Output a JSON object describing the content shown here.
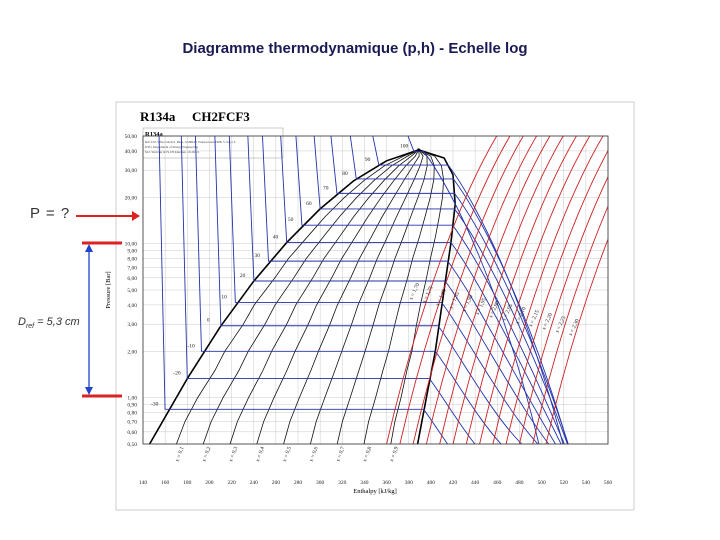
{
  "slide_title": "Diagramme thermodynamique (p,h) - Echelle log",
  "annotation_p": "P = ?",
  "annotation_d_prefix": "D",
  "annotation_d_sub": "ref",
  "annotation_d_value": " = 5,3 cm",
  "chart_data": {
    "type": "line",
    "title": "R134a",
    "subtitle": "CH2FCF3",
    "xlabel": "Enthalpy [kJ/kg]",
    "ylabel": "Pressure [Bar]",
    "xlim": [
      140,
      560
    ],
    "ylim": [
      0.5,
      50
    ],
    "yscale": "log",
    "grid": true,
    "x_ticks": [
      140,
      160,
      180,
      200,
      220,
      240,
      260,
      280,
      300,
      320,
      340,
      360,
      380,
      400,
      420,
      440,
      460,
      480,
      500,
      520,
      540,
      560
    ],
    "y_ticks": [
      50,
      40,
      30,
      20,
      10,
      9,
      8,
      7,
      6,
      5,
      4,
      3,
      2,
      1,
      0.9,
      0.8,
      0.7,
      0.6,
      0.5
    ],
    "y_tick_labels": [
      "50,00",
      "40,00",
      "30,00",
      "20,00",
      "10,00",
      "9,00",
      "8,00",
      "7,00",
      "6,00",
      "5,00",
      "4,00",
      "3,00",
      "2,00",
      "1,00",
      "0,90",
      "0,80",
      "0,70",
      "0,60",
      "0,50"
    ],
    "critical_point": {
      "h": 389,
      "p": 40.6
    },
    "saturation_liquid": [
      {
        "h": 146,
        "p": 0.5
      },
      {
        "h": 180,
        "p": 1.33
      },
      {
        "h": 210,
        "p": 2.9
      },
      {
        "h": 240,
        "p": 5.7
      },
      {
        "h": 270,
        "p": 10.2
      },
      {
        "h": 300,
        "p": 16.8
      },
      {
        "h": 330,
        "p": 25.5
      },
      {
        "h": 360,
        "p": 34.5
      },
      {
        "h": 389,
        "p": 40.6
      }
    ],
    "saturation_vapor": [
      {
        "h": 389,
        "p": 40.6
      },
      {
        "h": 412,
        "p": 36
      },
      {
        "h": 420,
        "p": 28
      },
      {
        "h": 422,
        "p": 18
      },
      {
        "h": 418,
        "p": 10
      },
      {
        "h": 412,
        "p": 5
      },
      {
        "h": 404,
        "p": 2
      },
      {
        "h": 396,
        "p": 1
      },
      {
        "h": 388,
        "p": 0.5
      }
    ],
    "isotherm_labels": [
      "-30",
      "-20",
      "-10",
      "0",
      "10",
      "20",
      "30",
      "40",
      "50",
      "60",
      "70",
      "80",
      "90",
      "100"
    ],
    "quality_labels": [
      "x = 0,1",
      "x = 0,2",
      "x = 0,3",
      "x = 0,4",
      "x = 0,5",
      "x = 0,6",
      "x = 0,7",
      "x = 0,8",
      "x = 0,9"
    ],
    "isentrope_labels": [
      "s = 1,70",
      "s = 1,75",
      "s = 1,80",
      "s = 1,85",
      "s = 1,90",
      "s = 1,95",
      "s = 2,00",
      "s = 2,05",
      "s = 2,10",
      "s = 2,15",
      "s = 2,20",
      "s = 2,25",
      "s = 2,30"
    ],
    "header_note_lines": [
      "Ref: D.P. Wilson & R.S. Basu, ASHRAE Transactions 1988, V. 94 pt 2.",
      "DTU, Department of Energy Engineering",
      "M.J. Skovrup & H.J.H Knudsen, 19-09-01"
    ],
    "series": [
      {
        "name": "saturation",
        "color": "#000000"
      },
      {
        "name": "isotherms",
        "color": "#2233aa"
      },
      {
        "name": "isentropes",
        "color": "#cc2222"
      }
    ]
  }
}
